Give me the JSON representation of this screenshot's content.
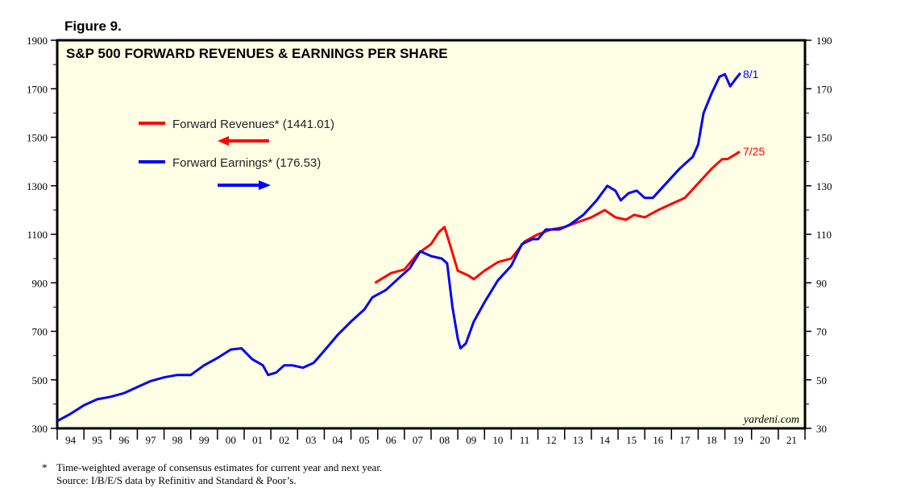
{
  "figure_label": "Figure 9.",
  "chart_data": {
    "type": "line",
    "title": "S&P 500 FORWARD REVENUES & EARNINGS PER SHARE",
    "x_ticks": [
      "94",
      "95",
      "96",
      "97",
      "98",
      "99",
      "00",
      "01",
      "02",
      "03",
      "04",
      "05",
      "06",
      "07",
      "08",
      "09",
      "10",
      "11",
      "12",
      "13",
      "14",
      "15",
      "16",
      "17",
      "18",
      "19",
      "20",
      "21"
    ],
    "xlim": [
      1994,
      2022
    ],
    "left_axis": {
      "ylim": [
        300,
        1900
      ],
      "ticks": [
        "300",
        "500",
        "700",
        "900",
        "1100",
        "1300",
        "1500",
        "1700",
        "1900"
      ]
    },
    "right_axis": {
      "ylim": [
        30,
        190
      ],
      "ticks": [
        "30",
        "50",
        "70",
        "90",
        "110",
        "130",
        "150",
        "170",
        "190"
      ]
    },
    "series": [
      {
        "name": "Forward Revenues* (1441.01)",
        "axis": "left",
        "color": "#ff0000",
        "end_label": "7/25",
        "x": [
          2005.9,
          2006.5,
          2007,
          2007.5,
          2008,
          2008.3,
          2008.5,
          2008.7,
          2009.0,
          2009.4,
          2009.6,
          2010,
          2010.5,
          2011,
          2011.5,
          2012,
          2012.5,
          2013,
          2013.5,
          2014,
          2014.5,
          2014.9,
          2015.3,
          2015.6,
          2016,
          2016.5,
          2017,
          2017.5,
          2018,
          2018.5,
          2018.9,
          2019.1,
          2019.56
        ],
        "y": [
          900,
          940,
          955,
          1020,
          1060,
          1110,
          1130,
          1060,
          950,
          930,
          915,
          950,
          985,
          1000,
          1070,
          1100,
          1120,
          1130,
          1150,
          1170,
          1200,
          1170,
          1160,
          1180,
          1170,
          1200,
          1225,
          1250,
          1310,
          1370,
          1410,
          1410,
          1441
        ]
      },
      {
        "name": "Forward Earnings* (176.53)",
        "axis": "right",
        "color": "#0000ff",
        "end_label": "8/1",
        "x": [
          1994.0,
          1994.5,
          1995.0,
          1995.5,
          1996,
          1996.5,
          1997,
          1997.5,
          1998,
          1998.5,
          1999,
          1999.5,
          2000,
          2000.5,
          2000.9,
          2001.3,
          2001.7,
          2001.9,
          2002.2,
          2002.5,
          2002.8,
          2003.2,
          2003.6,
          2004,
          2004.5,
          2005,
          2005.5,
          2005.8,
          2006.3,
          2006.8,
          2007.2,
          2007.6,
          2008,
          2008.4,
          2008.6,
          2008.8,
          2009.0,
          2009.1,
          2009.3,
          2009.6,
          2010,
          2010.5,
          2011,
          2011.4,
          2011.8,
          2012,
          2012.3,
          2012.8,
          2013.2,
          2013.7,
          2014.2,
          2014.6,
          2014.9,
          2015.1,
          2015.4,
          2015.7,
          2016,
          2016.3,
          2016.8,
          2017.3,
          2017.8,
          2018.0,
          2018.2,
          2018.5,
          2018.8,
          2019.0,
          2019.2,
          2019.4,
          2019.58
        ],
        "y": [
          33,
          36,
          39.5,
          42,
          43,
          44.5,
          47,
          49.5,
          51,
          52,
          52,
          56,
          59,
          62.5,
          63,
          58.5,
          56,
          52,
          53,
          56,
          56,
          55,
          57,
          62,
          68.5,
          74,
          79,
          84,
          87,
          92,
          96,
          103,
          101,
          100,
          98,
          80,
          67,
          63,
          65,
          74,
          82,
          91,
          97,
          106,
          108,
          108,
          112,
          112,
          114,
          118,
          124,
          130,
          128,
          124,
          127,
          128,
          125,
          125,
          131,
          137,
          142,
          147,
          160,
          168,
          175,
          176,
          171,
          174,
          176.5
        ]
      }
    ],
    "watermark": "yardeni.com"
  },
  "footnote": {
    "line1": "Time-weighted average of consensus estimates for current year and next year.",
    "marker": "*",
    "line2": "Source: I/B/E/S data by Refinitiv and Standard & Poor’s."
  }
}
